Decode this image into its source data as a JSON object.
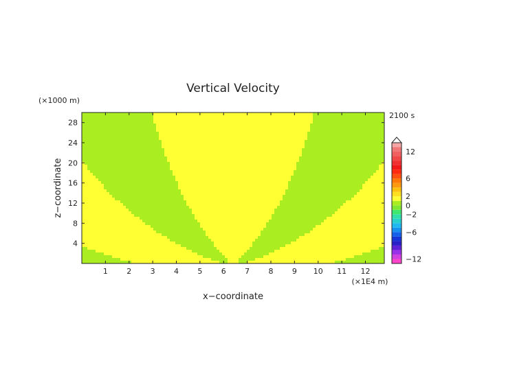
{
  "chart_data": {
    "type": "heatmap",
    "title": "Vertical Velocity",
    "time_label": "2100 s",
    "xlabel": "x−coordinate",
    "ylabel": "z−coordinate",
    "x_unit": "(×1E4 m)",
    "y_unit": "(×1000 m)",
    "xlim": [
      0,
      12.8
    ],
    "ylim": [
      0,
      30
    ],
    "x_ticks": [
      "1",
      "2",
      "3",
      "4",
      "5",
      "6",
      "7",
      "8",
      "9",
      "10",
      "11",
      "12"
    ],
    "y_ticks": [
      "4",
      "8",
      "12",
      "16",
      "20",
      "24",
      "28"
    ],
    "field_description": "Alternating positive (yellow) and negative (green) vertical velocity bands fanning upward from a source near x ≈ 6.4, z ≈ 0 (mountain-wave pattern)",
    "source_x": 6.4,
    "colorbar": {
      "levels": [
        -13,
        -12,
        -11,
        -10,
        -9,
        -8,
        -7,
        -6,
        -5,
        -4,
        -3,
        -2,
        -1,
        0,
        1,
        2,
        3,
        4,
        5,
        6,
        7,
        8,
        9,
        10,
        11,
        12,
        13,
        14
      ],
      "labels": [
        "−12",
        "−6",
        "−2",
        "0",
        "2",
        "6",
        "12"
      ],
      "label_values": [
        -12,
        -6,
        -2,
        0,
        2,
        6,
        12
      ],
      "colors": [
        "#ff44cc",
        "#d040e0",
        "#9a30e8",
        "#6020d8",
        "#2b1fc8",
        "#1535d8",
        "#1560e8",
        "#1890f0",
        "#20b8f0",
        "#28d0d0",
        "#30e0a8",
        "#40e870",
        "#80e830",
        "#aaee22",
        "#ffff33",
        "#ffe020",
        "#ffc010",
        "#ff9a10",
        "#ff7808",
        "#ff5010",
        "#ff2a10",
        "#f01818",
        "#f03030",
        "#f04848",
        "#f06060",
        "#f07878",
        "#f5a5a5"
      ],
      "color_positive": "#ffff33",
      "color_negative": "#aaee22",
      "extend": "max"
    }
  }
}
